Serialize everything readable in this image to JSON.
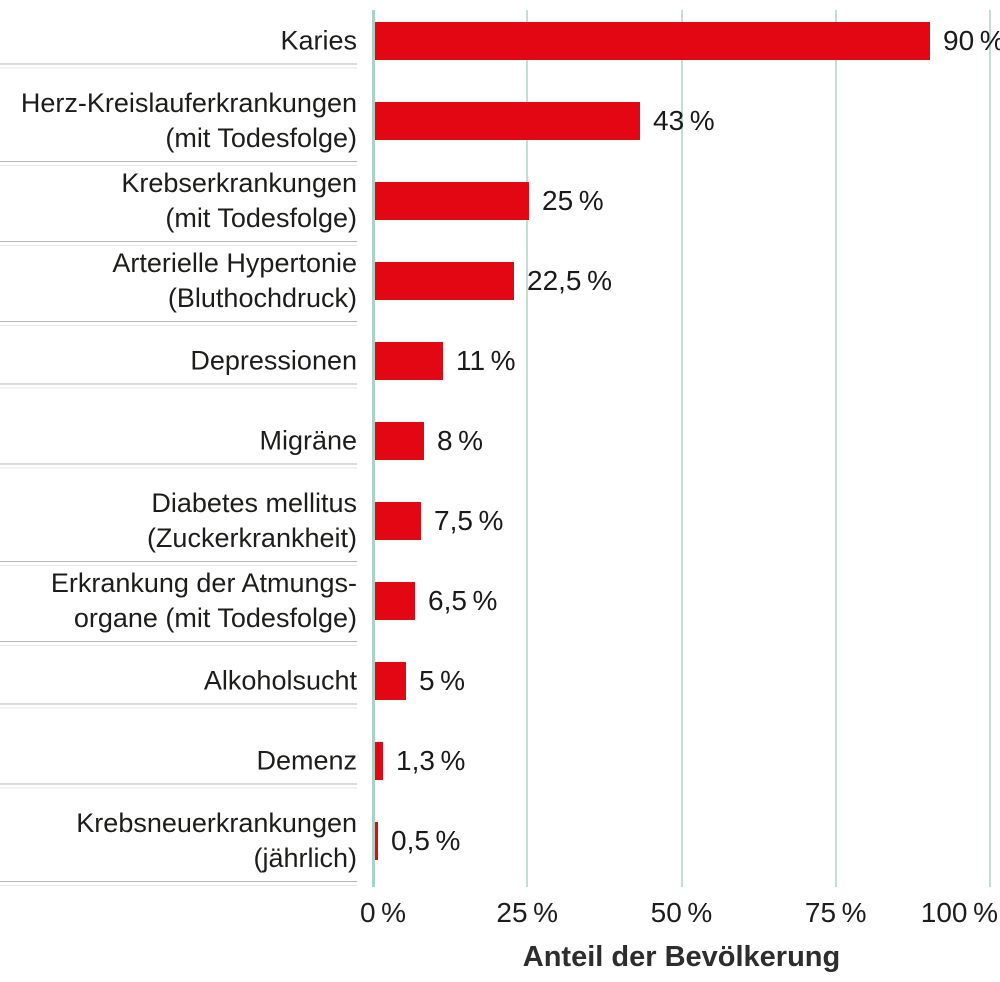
{
  "chart_data": {
    "type": "bar",
    "orientation": "horizontal",
    "title": "",
    "xlabel": "Anteil der Bevölkerung",
    "ylabel": "",
    "xlim": [
      0,
      100
    ],
    "grid": true,
    "legend": false,
    "bar_color": "#e30613",
    "grid_color": "#c3dfd3",
    "axis_color": "#a8d2c2",
    "divider_colors": [
      "#b6b6b6",
      "#e6e6e6"
    ],
    "categories": [
      [
        "Karies"
      ],
      [
        "Herz-Kreislauferkrankungen",
        "(mit Todesfolge)"
      ],
      [
        "Krebserkrankungen",
        "(mit Todesfolge)"
      ],
      [
        "Arterielle Hypertonie",
        "(Bluthochdruck)"
      ],
      [
        "Depressionen"
      ],
      [
        "Migräne"
      ],
      [
        "Diabetes mellitus",
        "(Zuckerkrankheit)"
      ],
      [
        "Erkrankung der Atmungs-",
        "organe (mit Todesfolge)"
      ],
      [
        "Alkoholsucht"
      ],
      [
        "Demenz"
      ],
      [
        "Krebsneuerkrankungen",
        "(jährlich)"
      ]
    ],
    "values": [
      90,
      43,
      25,
      22.5,
      11,
      8,
      7.5,
      6.5,
      5,
      1.3,
      0.5
    ],
    "value_labels": [
      "90 %",
      "43 %",
      "25 %",
      "22,5 %",
      "11 %",
      "8 %",
      "7,5 %",
      "6,5 %",
      "5 %",
      "1,3 %",
      "0,5 %"
    ],
    "x_ticks": [
      {
        "value": 0,
        "label": "0 %"
      },
      {
        "value": 25,
        "label": "25 %"
      },
      {
        "value": 50,
        "label": "50 %"
      },
      {
        "value": 75,
        "label": "75 %"
      },
      {
        "value": 100,
        "label": "100 %"
      }
    ]
  }
}
